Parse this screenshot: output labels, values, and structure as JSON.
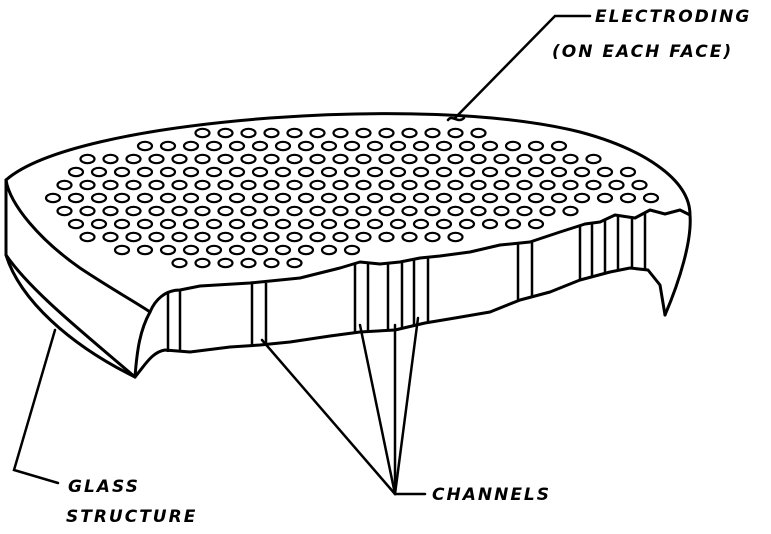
{
  "diagram": {
    "labels": {
      "electroding_line1": "ELECTRODING",
      "electroding_line2": "(ON EACH FACE)",
      "glass_line1": "GLASS",
      "glass_line2": "STRUCTURE",
      "channels": "CHANNELS"
    },
    "colors": {
      "ink": "#000000",
      "paper": "#ffffff"
    }
  }
}
